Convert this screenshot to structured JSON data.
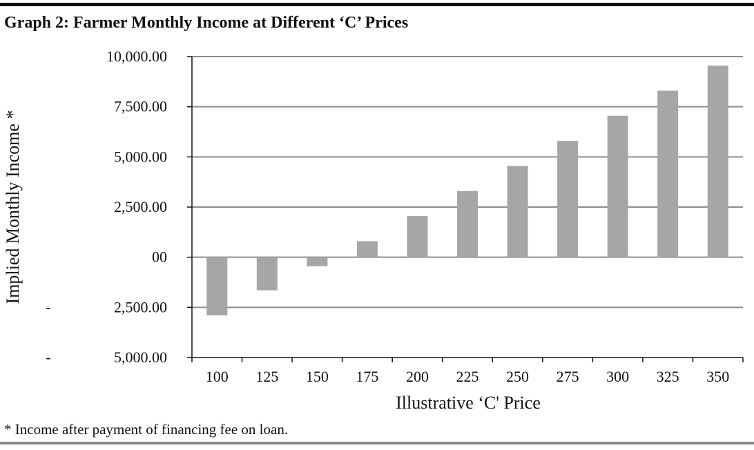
{
  "title": "Graph 2: Farmer Monthly Income at Different ‘C’ Prices",
  "footnote": "* Income after payment of financing fee on loan.",
  "colors": {
    "bar": "#a6a6a6",
    "grid": "#8c8c8c",
    "axis": "#111111"
  },
  "chart_data": {
    "type": "bar",
    "title": "Graph 2: Farmer Monthly Income at Different ‘C’ Prices",
    "xlabel": "Illustrative ‘C' Price",
    "ylabel": "Implied Monthly Income *",
    "categories": [
      "100",
      "125",
      "150",
      "175",
      "200",
      "225",
      "250",
      "275",
      "300",
      "325",
      "350"
    ],
    "values": [
      -2900,
      -1650,
      -450,
      800,
      2050,
      3300,
      4550,
      5800,
      7050,
      8300,
      9550
    ],
    "ylim": [
      -5000,
      10000
    ],
    "yticks": [
      10000,
      7500,
      5000,
      2500,
      0,
      -2500,
      -5000
    ],
    "ytick_labels": [
      "10,000.00",
      "7,500.00",
      "5,000.00",
      "2,500.00",
      "00",
      "2,500.00",
      "5,000.00"
    ],
    "ytick_prefix": [
      "",
      "",
      "",
      "",
      "",
      "-",
      "-"
    ],
    "grid": true,
    "legend": "none"
  }
}
